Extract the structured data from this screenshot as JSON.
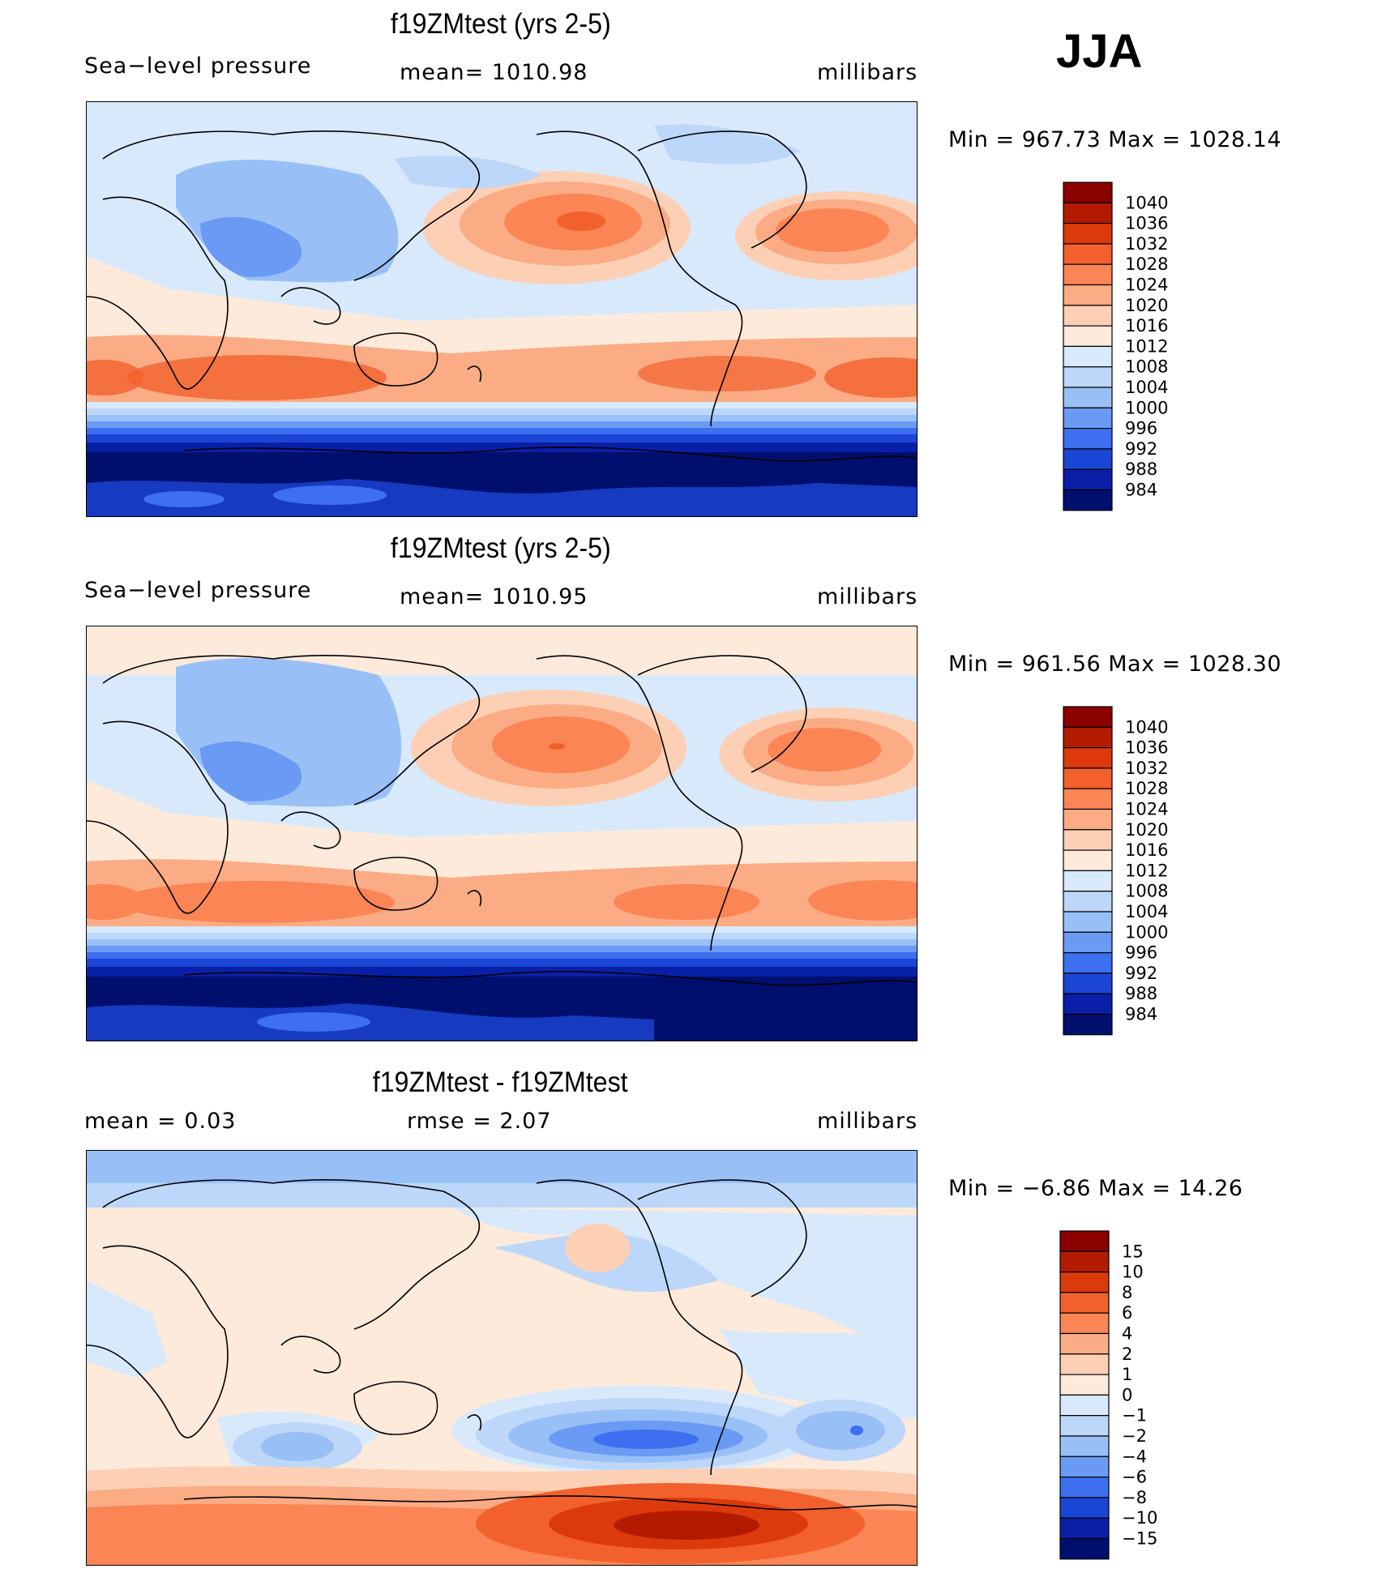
{
  "season": "JJA",
  "panels": [
    {
      "title": "f19ZMtest (yrs 2-5)",
      "left_label": "Sea−level pressure",
      "center_label": "mean=  1010.98",
      "right_label": "millibars",
      "minmax": "Min  =  967.73  Max  =  1028.14"
    },
    {
      "title": "f19ZMtest (yrs 2-5)",
      "left_label": "Sea−level pressure",
      "center_label": "mean=  1010.95",
      "right_label": "millibars",
      "minmax": "Min  =  961.56  Max  =  1028.30"
    },
    {
      "title": "f19ZMtest - f19ZMtest",
      "left_label": "mean  =     0.03",
      "center_label": "rmse  =     2.07",
      "right_label": "millibars",
      "minmax": "Min  =   −6.86  Max  =    14.26"
    }
  ],
  "chart_data": [
    {
      "type": "heatmap",
      "title": "f19ZMtest (yrs 2-5)",
      "variable": "Sea-level pressure",
      "units": "millibars",
      "mean": 1010.98,
      "min": 967.73,
      "max": 1028.14,
      "colorbar_labels": [
        "1040",
        "1036",
        "1032",
        "1028",
        "1024",
        "1020",
        "1016",
        "1012",
        "1008",
        "1004",
        "1000",
        "996",
        "992",
        "988",
        "984"
      ],
      "colorbar_colors": [
        "#8b0000",
        "#b31b00",
        "#dc3a0d",
        "#f2612d",
        "#fb8555",
        "#fbac85",
        "#fdd0b6",
        "#fdeadb",
        "#d8e9fb",
        "#bcd7f9",
        "#99c0f6",
        "#6a9af3",
        "#3d6ff0",
        "#1b45d4",
        "#0a1fa7",
        "#000f6d"
      ]
    },
    {
      "type": "heatmap",
      "title": "f19ZMtest (yrs 2-5)",
      "variable": "Sea-level pressure",
      "units": "millibars",
      "mean": 1010.95,
      "min": 961.56,
      "max": 1028.3,
      "colorbar_labels": [
        "1040",
        "1036",
        "1032",
        "1028",
        "1024",
        "1020",
        "1016",
        "1012",
        "1008",
        "1004",
        "1000",
        "996",
        "992",
        "988",
        "984"
      ],
      "colorbar_colors": [
        "#8b0000",
        "#b31b00",
        "#dc3a0d",
        "#f2612d",
        "#fb8555",
        "#fbac85",
        "#fdd0b6",
        "#fdeadb",
        "#d8e9fb",
        "#bcd7f9",
        "#99c0f6",
        "#6a9af3",
        "#3d6ff0",
        "#1b45d4",
        "#0a1fa7",
        "#000f6d"
      ]
    },
    {
      "type": "heatmap",
      "title": "f19ZMtest - f19ZMtest",
      "units": "millibars",
      "mean": 0.03,
      "rmse": 2.07,
      "min": -6.86,
      "max": 14.26,
      "colorbar_labels": [
        "15",
        "10",
        "8",
        "6",
        "4",
        "2",
        "1",
        "0",
        "−1",
        "−2",
        "−4",
        "−6",
        "−8",
        "−10",
        "−15"
      ],
      "colorbar_colors": [
        "#8b0000",
        "#b31b00",
        "#dc3a0d",
        "#f2612d",
        "#fb8555",
        "#fbac85",
        "#fdd0b6",
        "#fdeadb",
        "#d8e9fb",
        "#bcd7f9",
        "#99c0f6",
        "#6a9af3",
        "#3d6ff0",
        "#1b45d4",
        "#0a1fa7",
        "#000f6d"
      ]
    }
  ]
}
